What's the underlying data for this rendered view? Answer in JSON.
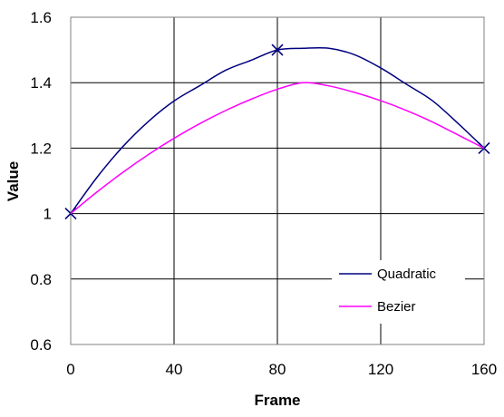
{
  "chart_data": {
    "type": "line",
    "title": "",
    "xlabel": "Frame",
    "ylabel": "Value",
    "xlim": [
      0,
      160
    ],
    "ylim": [
      0.6,
      1.6
    ],
    "xticks": [
      0,
      40,
      80,
      120,
      160
    ],
    "yticks": [
      0.6,
      0.8,
      1,
      1.2,
      1.4,
      1.6
    ],
    "xtick_labels": [
      "0",
      "40",
      "80",
      "120",
      "160"
    ],
    "ytick_labels": [
      "0.6",
      "0.8",
      "1",
      "1.2",
      "1.4",
      "1.6"
    ],
    "grid": true,
    "legend_position": "lower-right",
    "series": [
      {
        "name": "Quadratic",
        "color": "#000080",
        "x": [
          0,
          10,
          20,
          30,
          40,
          50,
          60,
          70,
          80,
          90,
          100,
          110,
          120,
          130,
          140,
          150,
          160
        ],
        "values": [
          1.0,
          1.109,
          1.203,
          1.281,
          1.344,
          1.391,
          1.438,
          1.469,
          1.5,
          1.505,
          1.505,
          1.485,
          1.445,
          1.395,
          1.345,
          1.275,
          1.2
        ],
        "markers": [
          {
            "x": 0,
            "y": 1.0
          },
          {
            "x": 80,
            "y": 1.5
          },
          {
            "x": 160,
            "y": 1.2
          }
        ]
      },
      {
        "name": "Bezier",
        "color": "#ff00ff",
        "x": [
          0,
          10,
          20,
          30,
          40,
          50,
          60,
          70,
          80,
          90,
          100,
          110,
          120,
          130,
          140,
          150,
          160
        ],
        "values": [
          1.0,
          1.065,
          1.125,
          1.18,
          1.23,
          1.275,
          1.315,
          1.35,
          1.38,
          1.4,
          1.39,
          1.37,
          1.345,
          1.315,
          1.28,
          1.24,
          1.2
        ]
      }
    ]
  }
}
